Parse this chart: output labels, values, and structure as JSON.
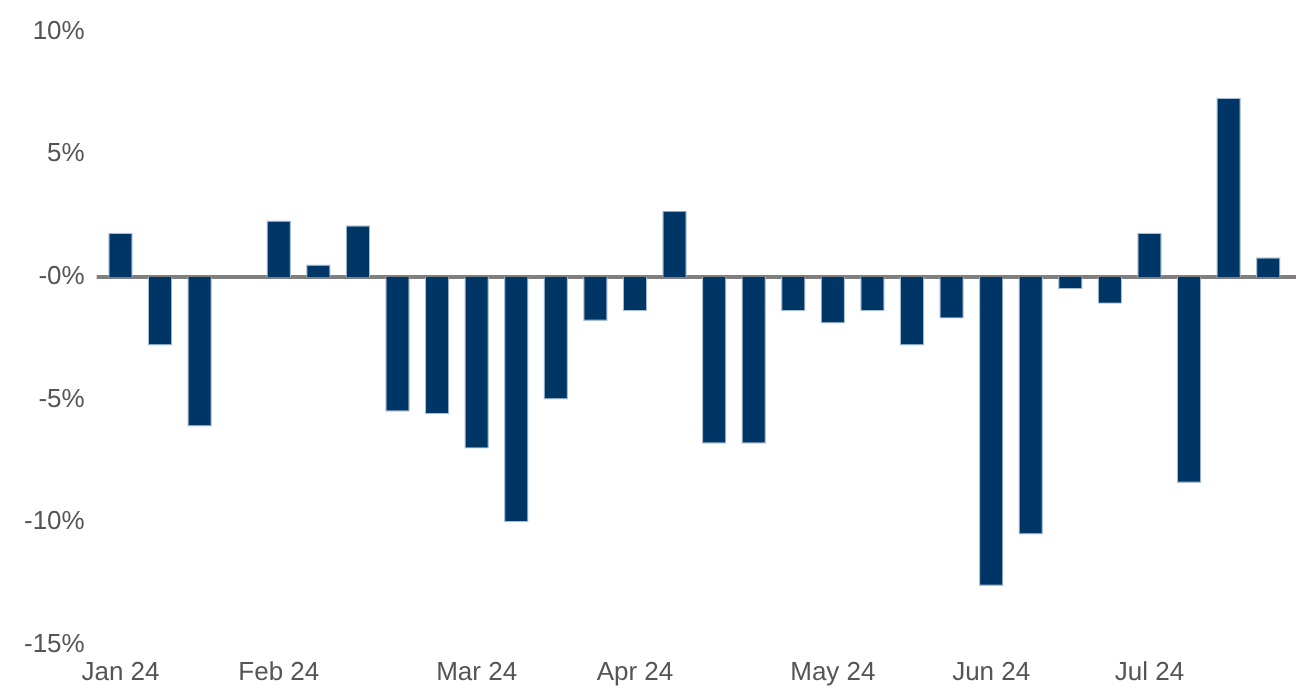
{
  "chart_data": {
    "type": "bar",
    "categories": [
      "Jan 24",
      null,
      null,
      null,
      "Feb 24",
      null,
      null,
      null,
      null,
      "Mar 24",
      null,
      null,
      null,
      "Apr 24",
      null,
      null,
      null,
      null,
      "May 24",
      null,
      null,
      null,
      "Jun 24",
      null,
      null,
      null,
      "Jul 24",
      null,
      null,
      null
    ],
    "values": [
      1.8,
      -2.8,
      -6.1,
      null,
      2.3,
      0.5,
      2.1,
      -5.5,
      -5.6,
      -7.0,
      -10.0,
      -5.0,
      -1.8,
      -1.4,
      2.7,
      -6.8,
      -6.8,
      -1.4,
      -1.9,
      -1.4,
      -2.8,
      -1.7,
      -12.6,
      -10.5,
      -0.5,
      -1.1,
      1.8,
      -8.4,
      7.3,
      0.8
    ],
    "color": "#003665",
    "ylim": [
      -15,
      10
    ],
    "yticks": [
      {
        "value": -15,
        "label": "-15%"
      },
      {
        "value": -10,
        "label": "-10%"
      },
      {
        "value": -5,
        "label": "-5%"
      },
      {
        "value": 0,
        "label": "-0%"
      },
      {
        "value": 5,
        "label": "5%"
      },
      {
        "value": 10,
        "label": "10%"
      }
    ],
    "ref_lines": [
      {
        "axis": "y",
        "value": 0,
        "color": "#7f7f7f"
      }
    ],
    "grid": false,
    "legend": false
  }
}
